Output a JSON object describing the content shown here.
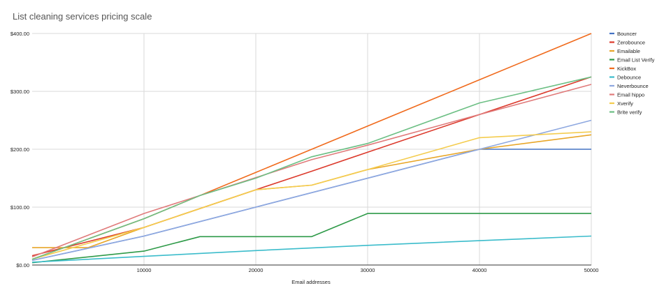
{
  "chart_data": {
    "type": "line",
    "title": "List cleaning services pricing scale",
    "xlabel": "Email addresses",
    "ylabel": "",
    "xlim": [
      0,
      50000
    ],
    "ylim": [
      0,
      400
    ],
    "x_ticks": [
      10000,
      20000,
      30000,
      40000,
      50000
    ],
    "y_ticks": [
      0,
      100,
      200,
      300,
      400
    ],
    "y_tick_labels": [
      "$0.00",
      "$100.00",
      "$200.00",
      "$300.00",
      "$400.00"
    ],
    "grid": true,
    "legend_position": "right",
    "series": [
      {
        "name": "Bouncer",
        "color": "#4472c4",
        "points": [
          [
            0,
            8
          ],
          [
            10000,
            50
          ],
          [
            20000,
            100
          ],
          [
            30000,
            150
          ],
          [
            40000,
            200
          ],
          [
            50000,
            200
          ]
        ]
      },
      {
        "name": "Zerobounce",
        "color": "#dc3a2c",
        "points": [
          [
            0,
            16
          ],
          [
            10000,
            65
          ],
          [
            20000,
            130
          ],
          [
            25000,
            162
          ],
          [
            30000,
            195
          ],
          [
            40000,
            260
          ],
          [
            50000,
            325
          ]
        ]
      },
      {
        "name": "Emailable",
        "color": "#e8a628",
        "points": [
          [
            0,
            30
          ],
          [
            5000,
            30
          ],
          [
            10000,
            65
          ],
          [
            20000,
            130
          ],
          [
            25000,
            138
          ],
          [
            30000,
            165
          ],
          [
            40000,
            200
          ],
          [
            50000,
            225
          ]
        ]
      },
      {
        "name": "Email List Verify",
        "color": "#2e9a48",
        "points": [
          [
            0,
            4
          ],
          [
            10000,
            24
          ],
          [
            15000,
            49
          ],
          [
            25000,
            49
          ],
          [
            30000,
            89
          ],
          [
            50000,
            89
          ]
        ]
      },
      {
        "name": "KickBox",
        "color": "#f06a1c",
        "points": [
          [
            0,
            10
          ],
          [
            10000,
            80
          ],
          [
            20000,
            160
          ],
          [
            30000,
            240
          ],
          [
            40000,
            320
          ],
          [
            50000,
            400
          ]
        ]
      },
      {
        "name": "Debounce",
        "color": "#3bbccb",
        "points": [
          [
            0,
            5
          ],
          [
            10000,
            15
          ],
          [
            20000,
            25
          ],
          [
            30000,
            34
          ],
          [
            40000,
            42
          ],
          [
            50000,
            50
          ]
        ]
      },
      {
        "name": "Neverbounce",
        "color": "#8ea8e0",
        "points": [
          [
            0,
            8
          ],
          [
            10000,
            50
          ],
          [
            20000,
            100
          ],
          [
            30000,
            150
          ],
          [
            40000,
            200
          ],
          [
            50000,
            250
          ]
        ]
      },
      {
        "name": "Email hippo",
        "color": "#e07b7b",
        "points": [
          [
            0,
            14
          ],
          [
            10000,
            89
          ],
          [
            15000,
            120
          ],
          [
            25000,
            182
          ],
          [
            30000,
            207
          ],
          [
            40000,
            260
          ],
          [
            50000,
            312
          ]
        ]
      },
      {
        "name": "Xverify",
        "color": "#f4cc4e",
        "points": [
          [
            0,
            10
          ],
          [
            10000,
            65
          ],
          [
            20000,
            130
          ],
          [
            25000,
            138
          ],
          [
            30000,
            165
          ],
          [
            40000,
            220
          ],
          [
            50000,
            230
          ]
        ]
      },
      {
        "name": "Brite verify",
        "color": "#6cbf84",
        "points": [
          [
            0,
            10
          ],
          [
            10000,
            80
          ],
          [
            15000,
            120
          ],
          [
            20000,
            150
          ],
          [
            25000,
            187
          ],
          [
            30000,
            210
          ],
          [
            40000,
            280
          ],
          [
            50000,
            325
          ]
        ]
      }
    ]
  }
}
